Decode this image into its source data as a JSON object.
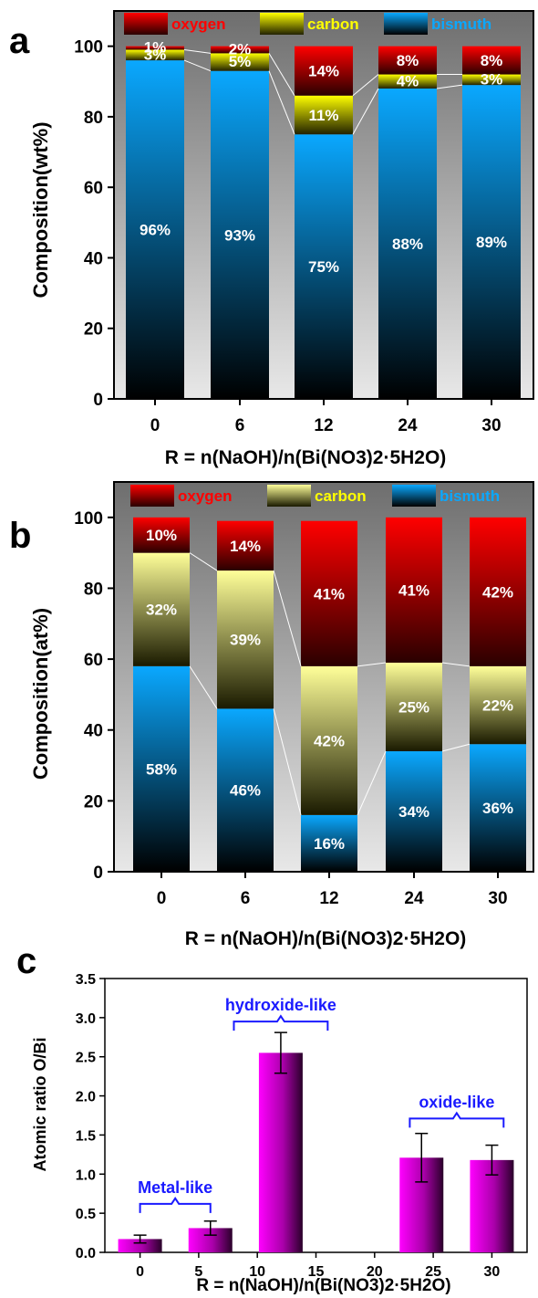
{
  "colors": {
    "oxygen": "#ff0000",
    "carbon": "#ffff00",
    "carbon_b": "#ffff99",
    "bismuth": "#0aa8ff",
    "bar_c": "#ff00ff",
    "annotation": "#1a1aff"
  },
  "chart_data": [
    {
      "panel": "a",
      "type": "bar",
      "stacked": true,
      "title": "",
      "xlabel": "R = n(NaOH)/n(Bi(NO3)2·5H2O)",
      "ylabel": "Composition(wt%)",
      "ylim": [
        0,
        110
      ],
      "yticks": [
        0,
        20,
        40,
        60,
        80,
        100
      ],
      "categories": [
        "0",
        "6",
        "12",
        "24",
        "30"
      ],
      "legend_position": "top",
      "grid": false,
      "series": [
        {
          "name": "bismuth",
          "values": [
            96,
            93,
            75,
            88,
            89
          ],
          "labels": [
            "96%",
            "93%",
            "75%",
            "88%",
            "89%"
          ]
        },
        {
          "name": "carbon",
          "values": [
            3,
            5,
            11,
            4,
            3
          ],
          "labels": [
            "3%",
            "5%",
            "11%",
            "4%",
            "3%"
          ]
        },
        {
          "name": "oxygen",
          "values": [
            1,
            2,
            14,
            8,
            8
          ],
          "labels": [
            "1%",
            "2%",
            "14%",
            "8%",
            "8%"
          ]
        }
      ]
    },
    {
      "panel": "b",
      "type": "bar",
      "stacked": true,
      "title": "",
      "xlabel": "R = n(NaOH)/n(Bi(NO3)2·5H2O)",
      "ylabel": "Composition(at%)",
      "ylim": [
        0,
        110
      ],
      "yticks": [
        0,
        20,
        40,
        60,
        80,
        100
      ],
      "categories": [
        "0",
        "6",
        "12",
        "24",
        "30"
      ],
      "legend_position": "top",
      "grid": false,
      "series": [
        {
          "name": "bismuth",
          "values": [
            58,
            46,
            16,
            34,
            36
          ],
          "labels": [
            "58%",
            "46%",
            "16%",
            "34%",
            "36%"
          ]
        },
        {
          "name": "carbon",
          "values": [
            32,
            39,
            42,
            25,
            22
          ],
          "labels": [
            "32%",
            "39%",
            "42%",
            "25%",
            "22%"
          ]
        },
        {
          "name": "oxygen",
          "values": [
            10,
            14,
            41,
            41,
            42
          ],
          "labels": [
            "10%",
            "14%",
            "41%",
            "41%",
            "42%"
          ]
        }
      ]
    },
    {
      "panel": "c",
      "type": "bar",
      "title": "",
      "xlabel": "R = n(NaOH)/n(Bi(NO3)2·5H2O)",
      "ylabel": "Atomic ratio O/Bi",
      "xlim": [
        -3,
        33
      ],
      "ylim": [
        0,
        3.5
      ],
      "xticks": [
        0,
        5,
        10,
        15,
        20,
        25,
        30
      ],
      "yticks": [
        0.0,
        0.5,
        1.0,
        1.5,
        2.0,
        2.5,
        3.0,
        3.5
      ],
      "grid": false,
      "x": [
        0,
        6,
        12,
        24,
        30
      ],
      "values": [
        0.17,
        0.31,
        2.55,
        1.21,
        1.18
      ],
      "errors": [
        0.05,
        0.09,
        0.26,
        0.31,
        0.19
      ],
      "annotations": [
        {
          "text": "Metal-like",
          "x_from": 0,
          "x_to": 6
        },
        {
          "text": "hydroxide-like",
          "x_from": 8,
          "x_to": 16
        },
        {
          "text": "oxide-like",
          "x_from": 23,
          "x_to": 31
        }
      ]
    }
  ]
}
